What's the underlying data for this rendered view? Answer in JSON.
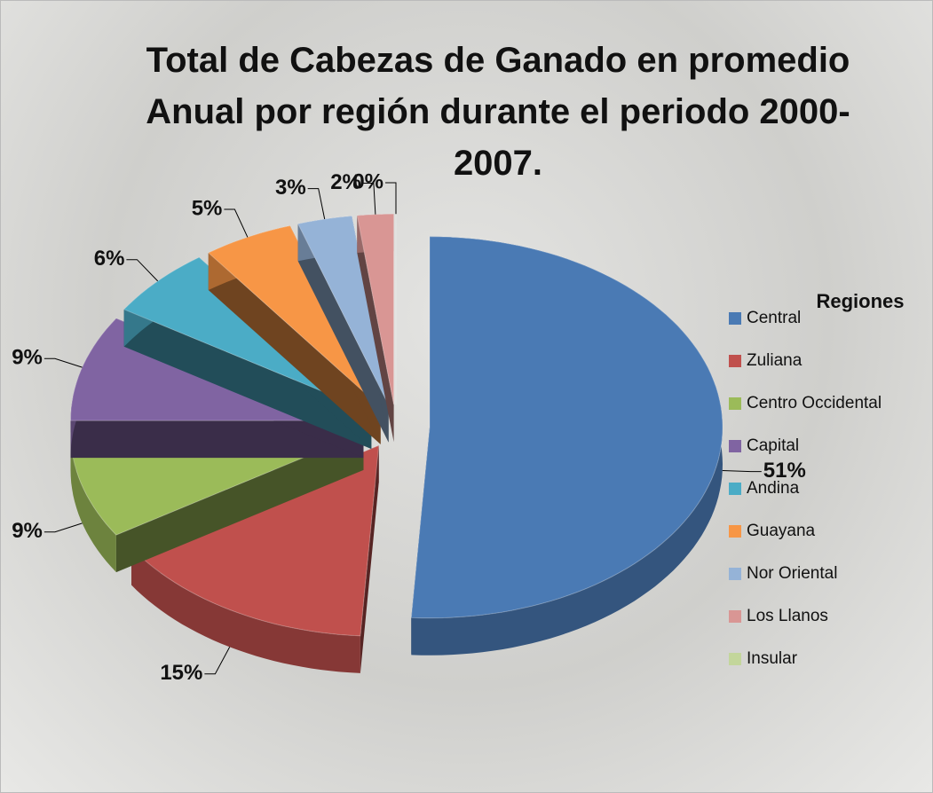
{
  "chart_data": {
    "type": "pie",
    "title": "Total de Cabezas de Ganado en promedio Anual por región durante el periodo 2000-2007.",
    "legend_title": "Regiones",
    "legend": "right",
    "categories": [
      "Central",
      "Zuliana",
      "Centro Occidental",
      "Capital",
      "Andina",
      "Guayana",
      "Nor Oriental",
      "Los Llanos",
      "Insular"
    ],
    "values": [
      51,
      15,
      9,
      9,
      6,
      5,
      3,
      2,
      0
    ],
    "value_labels": [
      "51%",
      "15%",
      "9%",
      "9%",
      "6%",
      "5%",
      "3%",
      "2%",
      "0%"
    ],
    "colors": [
      "#4a7ab4",
      "#c0504d",
      "#9bbb59",
      "#8064a2",
      "#4bacc6",
      "#f79646",
      "#95b3d7",
      "#d99694",
      "#c3d69b"
    ]
  }
}
